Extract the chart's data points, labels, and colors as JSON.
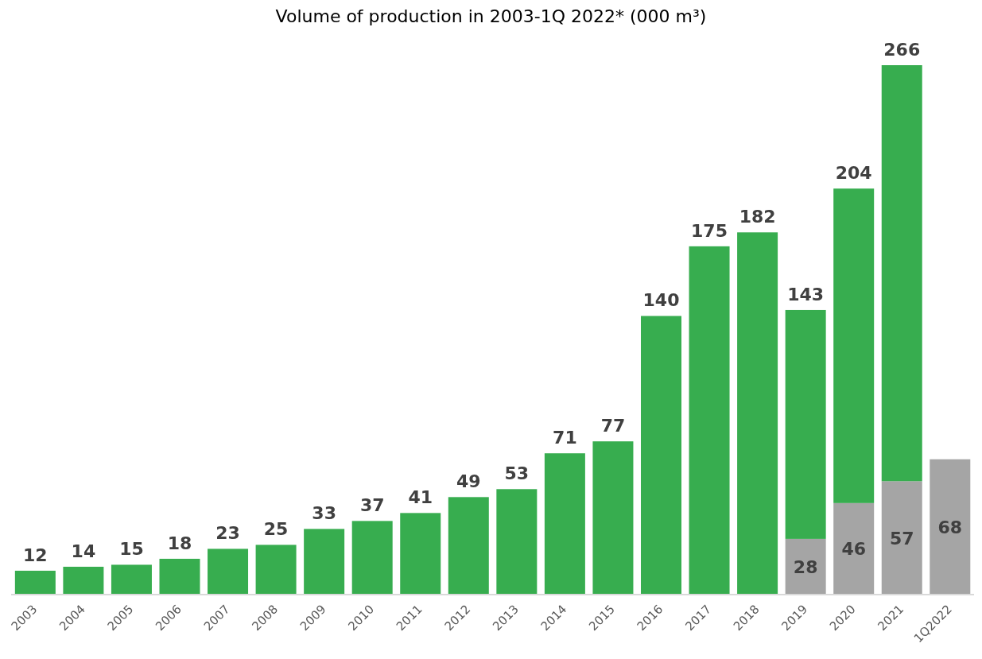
{
  "chart_data": {
    "type": "bar",
    "title": "Volume of production in 2003-1Q 2022* (000 m³)",
    "categories": [
      "2003",
      "2004",
      "2005",
      "2006",
      "2007",
      "2008",
      "2009",
      "2010",
      "2011",
      "2012",
      "2013",
      "2014",
      "2015",
      "2016",
      "2017",
      "2018",
      "2019",
      "2020",
      "2021",
      "1Q2022"
    ],
    "stacked": true,
    "series": [
      {
        "color": "#a5a5a5",
        "values": [
          null,
          null,
          null,
          null,
          null,
          null,
          null,
          null,
          null,
          null,
          null,
          null,
          null,
          null,
          null,
          null,
          28,
          46,
          57,
          68
        ],
        "value_labels": [
          null,
          null,
          null,
          null,
          null,
          null,
          null,
          null,
          null,
          null,
          null,
          null,
          null,
          null,
          null,
          null,
          "28",
          "46",
          "57",
          "68"
        ]
      },
      {
        "color": "#37ad4f",
        "values": [
          12,
          14,
          15,
          18,
          23,
          25,
          33,
          37,
          41,
          49,
          53,
          71,
          77,
          140,
          175,
          182,
          115,
          158,
          209,
          null
        ],
        "value_labels": [
          "12",
          "14",
          "15",
          "18",
          "23",
          "25",
          "33",
          "37",
          "41",
          "49",
          "53",
          "71",
          "77",
          "140",
          "175",
          "182",
          null,
          null,
          null,
          null
        ]
      }
    ],
    "totals": [
      null,
      null,
      null,
      null,
      null,
      null,
      null,
      null,
      null,
      null,
      null,
      null,
      null,
      null,
      null,
      null,
      "143",
      "204",
      "266",
      null
    ],
    "tick_labels": "x",
    "grid": false,
    "legend": false
  }
}
